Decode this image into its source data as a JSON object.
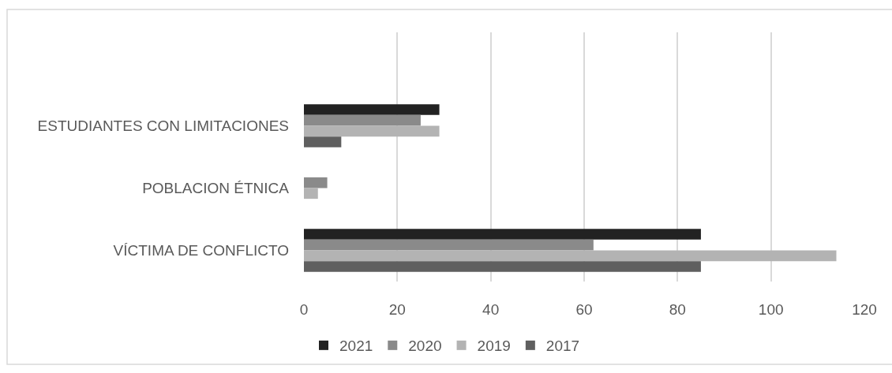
{
  "chart_data": {
    "type": "bar",
    "orientation": "horizontal",
    "categories": [
      null,
      "ESTUDIANTES CON LIMITACIONES",
      "POBLACION ÉTNICA",
      "VÍCTIMA DE CONFLICTO"
    ],
    "series": [
      {
        "name": "2021",
        "color": "#222222",
        "values": [
          null,
          29,
          null,
          85
        ]
      },
      {
        "name": "2020",
        "color": "#8a8a8a",
        "values": [
          null,
          25,
          5,
          62
        ]
      },
      {
        "name": "2019",
        "color": "#b3b3b3",
        "values": [
          null,
          29,
          3,
          114
        ]
      },
      {
        "name": "2017",
        "color": "#5f5f5f",
        "values": [
          null,
          8,
          null,
          85
        ]
      }
    ],
    "xlim": [
      0,
      120
    ],
    "xticks": [
      0,
      20,
      40,
      60,
      80,
      100,
      120
    ],
    "grid": "x",
    "legend": "bottom"
  }
}
